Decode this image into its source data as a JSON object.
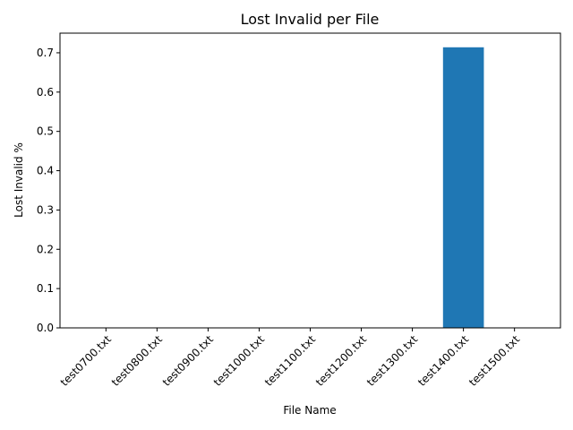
{
  "chart_data": {
    "type": "bar",
    "title": "Lost Invalid per File",
    "xlabel": "File Name",
    "ylabel": "Lost Invalid %",
    "categories": [
      "test0700.txt",
      "test0800.txt",
      "test0900.txt",
      "test1000.txt",
      "test1100.txt",
      "test1200.txt",
      "test1300.txt",
      "test1400.txt",
      "test1500.txt"
    ],
    "values": [
      0,
      0,
      0,
      0,
      0,
      0,
      0,
      0.714,
      0
    ],
    "ylim": [
      0,
      0.75
    ],
    "yticks": [
      0.0,
      0.1,
      0.2,
      0.3,
      0.4,
      0.5,
      0.6,
      0.7
    ],
    "ytick_labels": [
      "0.0",
      "0.1",
      "0.2",
      "0.3",
      "0.4",
      "0.5",
      "0.6",
      "0.7"
    ],
    "grid": false,
    "bar_color": "#1f77b4",
    "x_tick_rotation_deg": 45
  }
}
